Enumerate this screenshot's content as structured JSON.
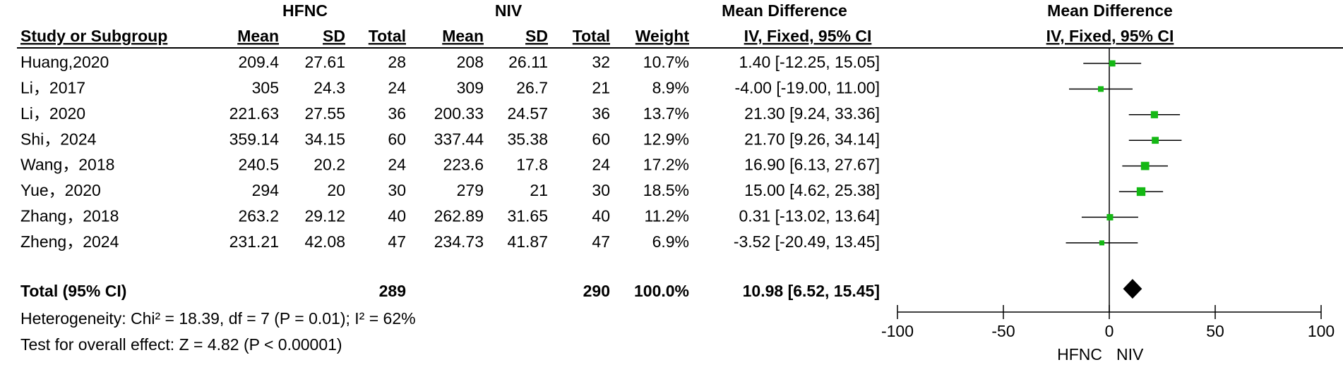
{
  "chart_data": {
    "type": "forest",
    "headers": {
      "group1": "HFNC",
      "group2": "NIV",
      "md_table": "Mean Difference",
      "md_plot": "Mean Difference",
      "study": "Study or Subgroup",
      "columns": [
        "Mean",
        "SD",
        "Total",
        "Mean",
        "SD",
        "Total",
        "Weight",
        "IV, Fixed, 95% CI"
      ],
      "plot_method": "IV, Fixed, 95% CI"
    },
    "categories": [
      "Huang,2020",
      "Li，2017",
      "Li，2020",
      "Shi，2024",
      "Wang，2018",
      "Yue，2020",
      "Zhang，2018",
      "Zheng，2024"
    ],
    "table": [
      [
        209.4,
        27.61,
        28,
        208,
        26.11,
        32
      ],
      [
        305,
        24.3,
        24,
        309,
        26.7,
        21
      ],
      [
        221.63,
        27.55,
        36,
        200.33,
        24.57,
        36
      ],
      [
        359.14,
        34.15,
        60,
        337.44,
        35.38,
        60
      ],
      [
        240.5,
        20.2,
        24,
        223.6,
        17.8,
        24
      ],
      [
        294,
        20,
        30,
        279,
        21,
        30
      ],
      [
        263.2,
        29.12,
        40,
        262.89,
        31.65,
        40
      ],
      [
        231.21,
        42.08,
        47,
        234.73,
        41.87,
        47
      ]
    ],
    "weights": [
      10.7,
      8.9,
      13.7,
      12.9,
      17.2,
      18.5,
      11.2,
      6.9
    ],
    "weight_labels": [
      "10.7%",
      "8.9%",
      "13.7%",
      "12.9%",
      "17.2%",
      "18.5%",
      "11.2%",
      "6.9%"
    ],
    "values": [
      1.4,
      -4,
      21.3,
      21.7,
      16.9,
      15,
      0.31,
      -3.52
    ],
    "lower": [
      -12.25,
      -19,
      9.24,
      9.26,
      6.13,
      4.62,
      -13.02,
      -20.49
    ],
    "upper": [
      15.05,
      11,
      33.36,
      34.14,
      27.67,
      25.38,
      13.64,
      13.45
    ],
    "value_labels": [
      "1.40 [-12.25, 15.05]",
      "-4.00 [-19.00, 11.00]",
      "21.30 [9.24, 33.36]",
      "21.70 [9.26, 34.14]",
      "16.90 [6.13, 27.67]",
      "15.00 [4.62, 25.38]",
      "0.31 [-13.02, 13.64]",
      "-3.52 [-20.49, 13.45]"
    ],
    "total": {
      "label": "Total (95% CI)",
      "total1": 289,
      "total2": 290,
      "weight_label": "100.0%",
      "value": 10.98,
      "lower": 6.52,
      "upper": 15.45,
      "value_label": "10.98 [6.52, 15.45]"
    },
    "heterogeneity": "Heterogeneity: Chi² = 18.39, df = 7 (P = 0.01); I² = 62%",
    "overall_effect": "Test for overall effect: Z = 4.82 (P < 0.00001)",
    "xlim": [
      -100,
      100
    ],
    "xticks": [
      -100,
      -50,
      0,
      50,
      100
    ],
    "xlabels": [
      "HFNC",
      "NIV"
    ],
    "color": "#14b814",
    "diamond_color": "#000000"
  }
}
